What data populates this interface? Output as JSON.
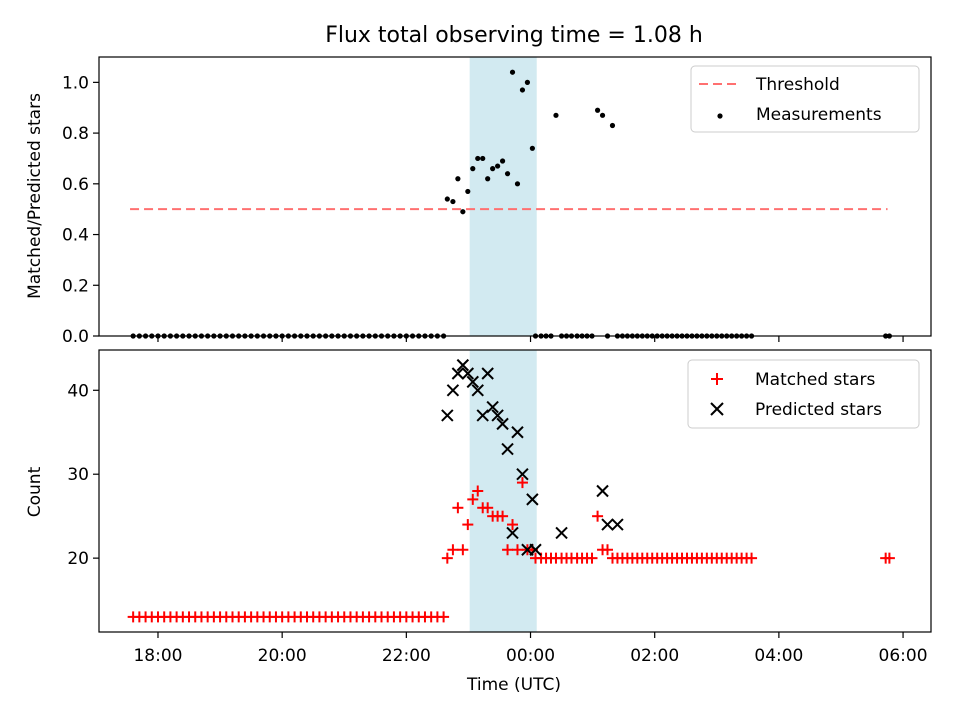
{
  "chart_data": [
    {
      "type": "scatter",
      "title": "Flux total observing time = 1.08 h",
      "ylabel": "Matched/Predicted stars",
      "xlabel": "",
      "ylim": [
        0,
        1.1
      ],
      "yticks": [
        "0.0",
        "0.2",
        "0.4",
        "0.6",
        "0.8",
        "1.0"
      ],
      "ytick_values": [
        0,
        0.2,
        0.4,
        0.6,
        0.8,
        1.0
      ],
      "xlim_hours": [
        17.05,
        30.45
      ],
      "highlight_span_hours": [
        23.02,
        24.1
      ],
      "highlight_color": "#add8e6",
      "threshold": {
        "name": "Threshold",
        "value": 0.5,
        "x_range_hours": [
          17.55,
          29.75
        ],
        "color": "#ff7070"
      },
      "legend": [
        "Threshold",
        "Measurements"
      ],
      "legend_position": "upper right",
      "series": [
        {
          "name": "Measurements",
          "color": "#000000",
          "marker": "dot",
          "x_hours": [
            17.6,
            17.7,
            17.8,
            17.9,
            18.0,
            18.1,
            18.2,
            18.3,
            18.4,
            18.5,
            18.6,
            18.7,
            18.8,
            18.9,
            19.0,
            19.1,
            19.2,
            19.3,
            19.4,
            19.5,
            19.6,
            19.7,
            19.8,
            19.9,
            20.0,
            20.1,
            20.2,
            20.3,
            20.4,
            20.5,
            20.6,
            20.7,
            20.8,
            20.9,
            21.0,
            21.1,
            21.2,
            21.3,
            21.4,
            21.5,
            21.6,
            21.7,
            21.8,
            21.9,
            22.0,
            22.1,
            22.2,
            22.3,
            22.4,
            22.5,
            22.6,
            22.66,
            22.75,
            22.83,
            22.91,
            22.99,
            23.07,
            23.15,
            23.23,
            23.31,
            23.39,
            23.47,
            23.55,
            23.63,
            23.71,
            23.79,
            23.87,
            23.95,
            24.03,
            24.08,
            24.17,
            24.25,
            24.33,
            24.41,
            24.5,
            24.58,
            24.66,
            24.75,
            24.83,
            24.91,
            24.99,
            25.08,
            25.16,
            25.24,
            25.32,
            25.4,
            25.48,
            25.56,
            25.64,
            25.72,
            25.8,
            25.88,
            25.96,
            26.04,
            26.12,
            26.2,
            26.28,
            26.36,
            26.44,
            26.52,
            26.6,
            26.68,
            26.76,
            26.84,
            26.92,
            27.0,
            27.08,
            27.16,
            27.24,
            27.32,
            27.4,
            27.48,
            27.56,
            29.72,
            29.78
          ],
          "y": [
            0,
            0,
            0,
            0,
            0,
            0,
            0,
            0,
            0,
            0,
            0,
            0,
            0,
            0,
            0,
            0,
            0,
            0,
            0,
            0,
            0,
            0,
            0,
            0,
            0,
            0,
            0,
            0,
            0,
            0,
            0,
            0,
            0,
            0,
            0,
            0,
            0,
            0,
            0,
            0,
            0,
            0,
            0,
            0,
            0,
            0,
            0,
            0,
            0,
            0,
            0,
            0.54,
            0.53,
            0.62,
            0.49,
            0.57,
            0.66,
            0.7,
            0.7,
            0.62,
            0.66,
            0.67,
            0.69,
            0.64,
            1.04,
            0.6,
            0.97,
            1.0,
            0.74,
            0,
            0,
            0,
            0,
            0.87,
            0,
            0,
            0,
            0,
            0,
            0,
            0,
            0.89,
            0.87,
            0,
            0.83,
            0,
            0,
            0,
            0,
            0,
            0,
            0,
            0,
            0,
            0,
            0,
            0,
            0,
            0,
            0,
            0,
            0,
            0,
            0,
            0,
            0,
            0,
            0,
            0,
            0,
            0,
            0,
            0,
            0,
            0
          ]
        }
      ]
    },
    {
      "type": "scatter",
      "title": "",
      "ylabel": "Count",
      "xlabel": "Time (UTC)",
      "ylim": [
        11.2,
        44.8
      ],
      "yticks": [
        "20",
        "30",
        "40"
      ],
      "ytick_values": [
        20,
        30,
        40
      ],
      "xlim_hours": [
        17.05,
        30.45
      ],
      "xticks": [
        "18:00",
        "20:00",
        "22:00",
        "00:00",
        "02:00",
        "04:00",
        "06:00"
      ],
      "xtick_hours": [
        18,
        20,
        22,
        24,
        26,
        28,
        30
      ],
      "highlight_span_hours": [
        23.02,
        24.1
      ],
      "highlight_color": "#add8e6",
      "legend": [
        "Matched stars",
        "Predicted stars"
      ],
      "legend_position": "upper right",
      "series": [
        {
          "name": "Matched stars",
          "color": "#ff0000",
          "marker": "plus",
          "x_hours": [
            17.6,
            17.7,
            17.8,
            17.9,
            18.0,
            18.1,
            18.2,
            18.3,
            18.4,
            18.5,
            18.6,
            18.7,
            18.8,
            18.9,
            19.0,
            19.1,
            19.2,
            19.3,
            19.4,
            19.5,
            19.6,
            19.7,
            19.8,
            19.9,
            20.0,
            20.1,
            20.2,
            20.3,
            20.4,
            20.5,
            20.6,
            20.7,
            20.8,
            20.9,
            21.0,
            21.1,
            21.2,
            21.3,
            21.4,
            21.5,
            21.6,
            21.7,
            21.8,
            21.9,
            22.0,
            22.1,
            22.2,
            22.3,
            22.4,
            22.5,
            22.6,
            22.66,
            22.75,
            22.83,
            22.91,
            22.99,
            23.07,
            23.15,
            23.23,
            23.31,
            23.39,
            23.47,
            23.55,
            23.63,
            23.71,
            23.79,
            23.87,
            23.95,
            24.03,
            24.08,
            24.17,
            24.25,
            24.33,
            24.41,
            24.5,
            24.58,
            24.66,
            24.75,
            24.83,
            24.91,
            24.99,
            25.08,
            25.16,
            25.24,
            25.32,
            25.4,
            25.48,
            25.56,
            25.64,
            25.72,
            25.8,
            25.88,
            25.96,
            26.04,
            26.12,
            26.2,
            26.28,
            26.36,
            26.44,
            26.52,
            26.6,
            26.68,
            26.76,
            26.84,
            26.92,
            27.0,
            27.08,
            27.16,
            27.24,
            27.32,
            27.4,
            27.48,
            27.56,
            29.72,
            29.78
          ],
          "y": [
            13,
            13,
            13,
            13,
            13,
            13,
            13,
            13,
            13,
            13,
            13,
            13,
            13,
            13,
            13,
            13,
            13,
            13,
            13,
            13,
            13,
            13,
            13,
            13,
            13,
            13,
            13,
            13,
            13,
            13,
            13,
            13,
            13,
            13,
            13,
            13,
            13,
            13,
            13,
            13,
            13,
            13,
            13,
            13,
            13,
            13,
            13,
            13,
            13,
            13,
            13,
            20,
            21,
            26,
            21,
            24,
            27,
            28,
            26,
            26,
            25,
            25,
            25,
            21,
            24,
            21,
            29,
            21,
            21,
            20,
            20,
            20,
            20,
            20,
            20,
            20,
            20,
            20,
            20,
            20,
            20,
            25,
            21,
            21,
            20,
            20,
            20,
            20,
            20,
            20,
            20,
            20,
            20,
            20,
            20,
            20,
            20,
            20,
            20,
            20,
            20,
            20,
            20,
            20,
            20,
            20,
            20,
            20,
            20,
            20,
            20,
            20,
            20,
            20,
            20
          ]
        },
        {
          "name": "Predicted stars",
          "color": "#000000",
          "marker": "x",
          "x_hours": [
            22.66,
            22.75,
            22.83,
            22.91,
            22.99,
            23.07,
            23.15,
            23.23,
            23.31,
            23.39,
            23.47,
            23.55,
            23.63,
            23.71,
            23.79,
            23.87,
            23.95,
            24.03,
            24.08,
            24.5,
            25.16,
            25.24,
            25.4
          ],
          "y": [
            37,
            40,
            42,
            43,
            42,
            41,
            40,
            37,
            42,
            38,
            37,
            36,
            33,
            23,
            35,
            30,
            21,
            27,
            21,
            23,
            28,
            24,
            24
          ]
        }
      ]
    }
  ]
}
